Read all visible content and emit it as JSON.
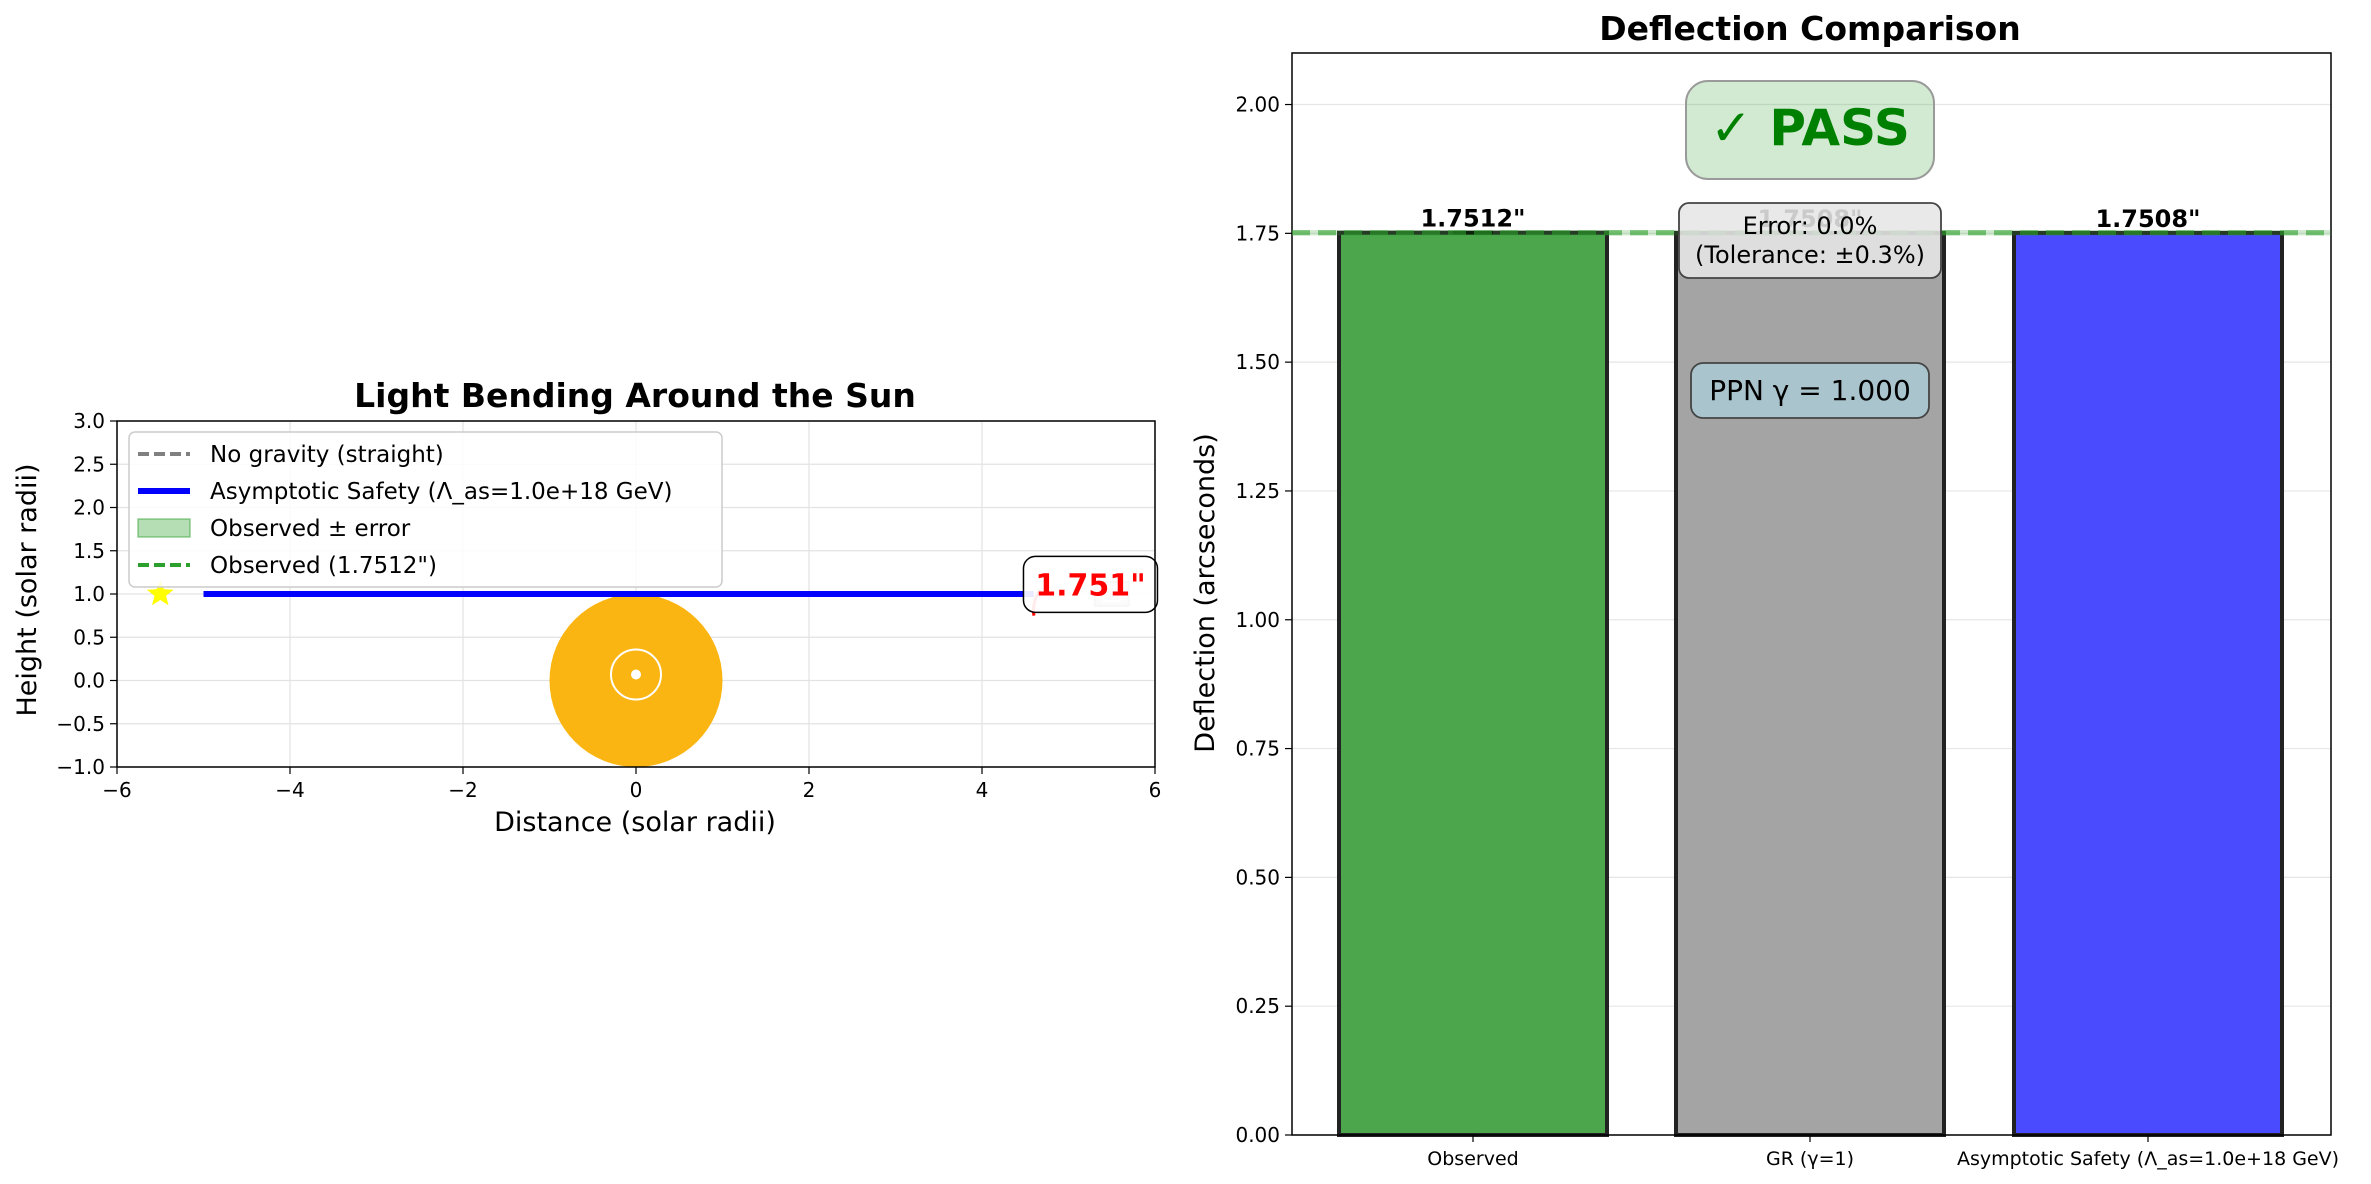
{
  "chart_data": [
    {
      "type": "line",
      "title": "Light Bending Around the Sun",
      "xlabel": "Distance (solar radii)",
      "ylabel": "Height (solar radii)",
      "xlim": [
        -6,
        6
      ],
      "ylim": [
        -1,
        3
      ],
      "xticks": [
        -6,
        -4,
        -2,
        0,
        2,
        4,
        6
      ],
      "xtick_labels": [
        "−6",
        "−4",
        "−2",
        "0",
        "2",
        "4",
        "6"
      ],
      "yticks": [
        -1,
        -0.5,
        0,
        0.5,
        1,
        1.5,
        2,
        2.5,
        3
      ],
      "ytick_labels": [
        "−1.0",
        "−0.5",
        "0.0",
        "0.5",
        "1.0",
        "1.5",
        "2.0",
        "2.5",
        "3.0"
      ],
      "grid": true,
      "legend_position": "top-left",
      "legend": [
        {
          "label": "No gravity (straight)",
          "style": "dashed",
          "color": "#808080"
        },
        {
          "label": "Asymptotic Safety (Λ_as=1.0e+18 GeV)",
          "style": "solid",
          "color": "#0000ff"
        },
        {
          "label": "Observed ± error",
          "style": "patch",
          "color": "#2ca02c"
        },
        {
          "label": "Observed (1.7512\")",
          "style": "dashed",
          "color": "#2ca02c"
        }
      ],
      "series": [
        {
          "name": "Asymptotic Safety (Λ_as=1.0e+18 GeV)",
          "color": "#0000ff",
          "x": [
            -5,
            0,
            4.6
          ],
          "y": [
            1.0,
            1.0,
            1.0
          ]
        }
      ],
      "sun": {
        "x": 0,
        "y": 0,
        "radius": 1,
        "color": "#fbb512",
        "symbol": "☉"
      },
      "star": {
        "x": -5.5,
        "y": 1.0,
        "color": "#ffff00"
      },
      "observer": {
        "x": 5.5,
        "y": 1.0
      },
      "annotation": {
        "text": "1.751\"",
        "x": 5.15,
        "y": 1.1,
        "color": "#ff0000"
      }
    },
    {
      "type": "bar",
      "title": "Deflection Comparison",
      "ylabel": "Deflection (arcseconds)",
      "ylim": [
        0,
        2.1
      ],
      "yticks": [
        0,
        0.25,
        0.5,
        0.75,
        1.0,
        1.25,
        1.5,
        1.75,
        2.0
      ],
      "ytick_labels": [
        "0.00",
        "0.25",
        "0.50",
        "0.75",
        "1.00",
        "1.25",
        "1.50",
        "1.75",
        "2.00"
      ],
      "grid": true,
      "categories": [
        "Observed",
        "GR (γ=1)",
        "Asymptotic Safety (Λ_as=1.0e+18 GeV)"
      ],
      "values": [
        1.7512,
        1.7508,
        1.7508
      ],
      "value_labels": [
        "1.7512\"",
        "1.7508\"",
        "1.7508\""
      ],
      "colors": [
        "#4ca64c",
        "#a4a4a4",
        "#4a4aff"
      ],
      "error": [
        0.0016,
        0,
        0
      ],
      "observed_line": 1.7512,
      "observed_band": [
        1.7459,
        1.7565
      ],
      "badge": {
        "text": "✓ PASS",
        "color": "#008000"
      },
      "error_box": {
        "line1": "Error: 0.0%",
        "line2": "(Tolerance: ±0.3%)"
      },
      "ppn_box": {
        "text": "PPN γ = 1.000"
      }
    }
  ]
}
